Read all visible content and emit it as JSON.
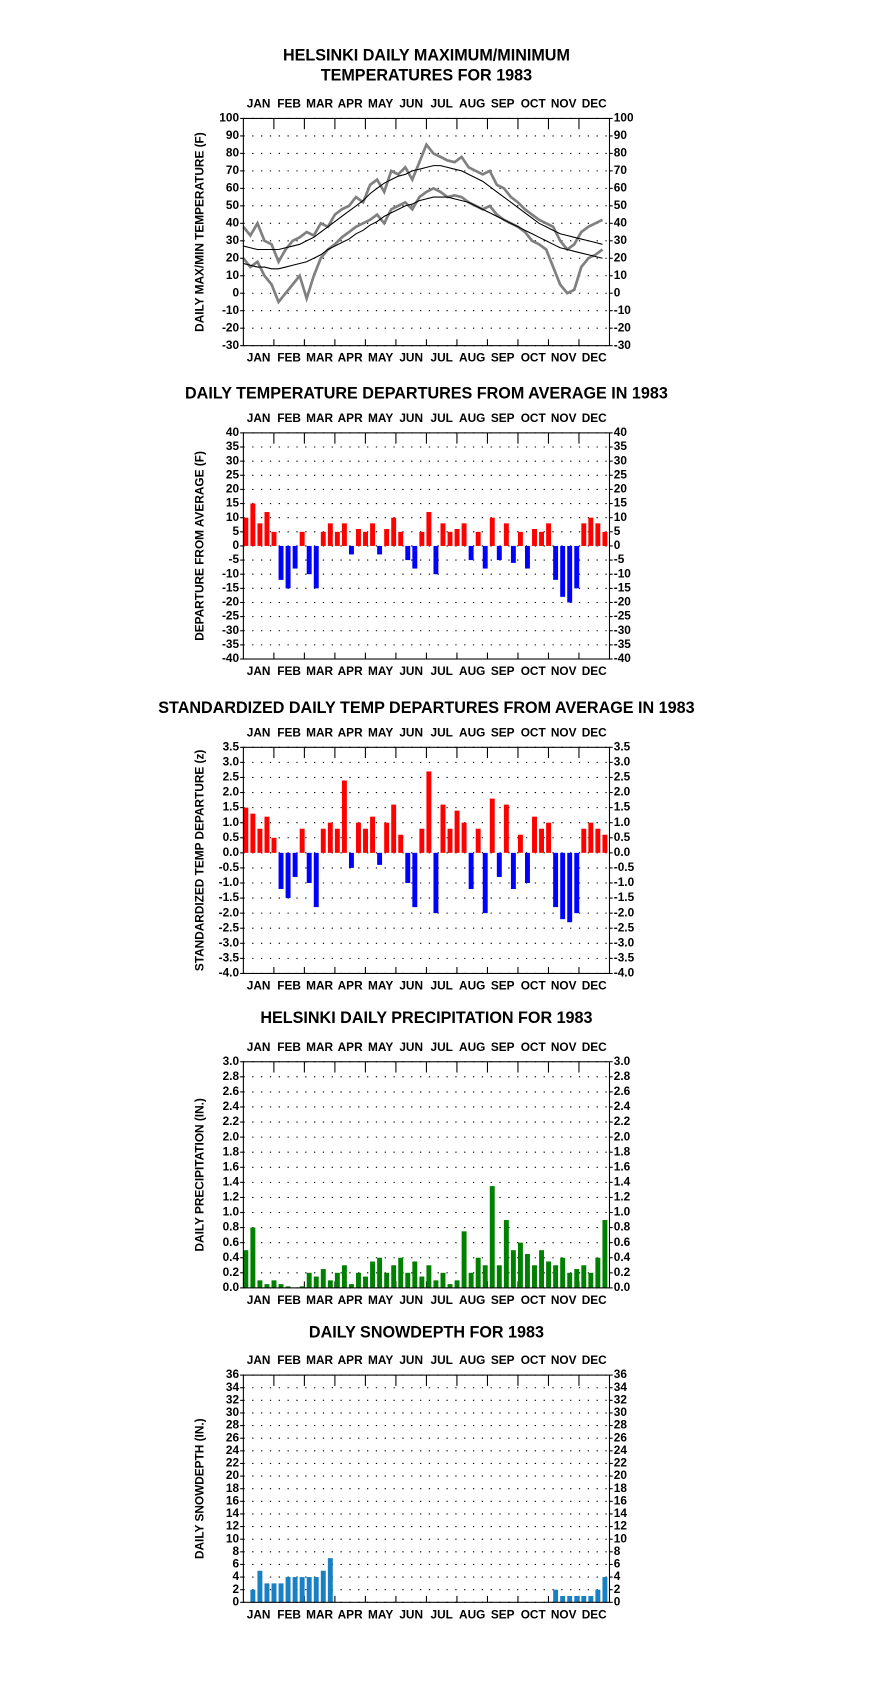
{
  "chart_data": [
    {
      "type": "line",
      "title": [
        "HELSINKI DAILY MAXIMUM/MINIMUM",
        "TEMPERATURES FOR 1983"
      ],
      "y_label": "DAILY MAX/MIN TEMPERATURE (F)",
      "months": [
        "JAN",
        "FEB",
        "MAR",
        "APR",
        "MAY",
        "JUN",
        "JUL",
        "AUG",
        "SEP",
        "OCT",
        "NOV",
        "DEC"
      ],
      "x": [
        1,
        8,
        15,
        22,
        29,
        36,
        43,
        50,
        57,
        64,
        71,
        78,
        85,
        92,
        99,
        106,
        113,
        120,
        127,
        134,
        141,
        148,
        155,
        162,
        169,
        176,
        183,
        190,
        197,
        204,
        211,
        218,
        225,
        232,
        239,
        246,
        253,
        260,
        267,
        274,
        281,
        288,
        295,
        302,
        309,
        316,
        323,
        330,
        337,
        344,
        351,
        358
      ],
      "xlim": [
        1,
        365
      ],
      "ylim": [
        -30,
        100
      ],
      "yticks": [
        -30,
        -20,
        -10,
        0,
        10,
        20,
        30,
        40,
        50,
        60,
        70,
        80,
        90,
        100
      ],
      "grid": true,
      "series": [
        {
          "name": "Observed maximum",
          "color": "#808080",
          "values": [
            38,
            33,
            40,
            30,
            28,
            18,
            25,
            30,
            32,
            35,
            33,
            40,
            38,
            45,
            48,
            50,
            55,
            52,
            62,
            65,
            58,
            70,
            68,
            72,
            65,
            75,
            85,
            80,
            78,
            76,
            75,
            78,
            72,
            70,
            68,
            70,
            62,
            60,
            55,
            52,
            48,
            45,
            42,
            40,
            38,
            30,
            25,
            28,
            35,
            38,
            40,
            42
          ]
        },
        {
          "name": "Observed minimum",
          "color": "#808080",
          "values": [
            20,
            15,
            18,
            10,
            5,
            -5,
            0,
            5,
            10,
            -3,
            10,
            20,
            25,
            28,
            32,
            35,
            38,
            40,
            42,
            45,
            40,
            48,
            50,
            52,
            48,
            55,
            58,
            60,
            58,
            55,
            56,
            55,
            52,
            50,
            48,
            50,
            45,
            42,
            40,
            38,
            35,
            30,
            28,
            25,
            15,
            5,
            0,
            2,
            15,
            20,
            22,
            25
          ]
        },
        {
          "name": "Normal maximum",
          "color": "#000000",
          "values": [
            27,
            26,
            25,
            25,
            25,
            25,
            26,
            27,
            28,
            30,
            32,
            35,
            38,
            41,
            44,
            47,
            50,
            53,
            57,
            60,
            63,
            65,
            67,
            68,
            70,
            71,
            72,
            73,
            73,
            72,
            71,
            70,
            68,
            66,
            64,
            61,
            58,
            55,
            52,
            49,
            46,
            43,
            40,
            38,
            36,
            34,
            33,
            32,
            31,
            30,
            29,
            28
          ]
        },
        {
          "name": "Normal minimum",
          "color": "#000000",
          "values": [
            17,
            16,
            15,
            15,
            14,
            14,
            15,
            16,
            17,
            18,
            20,
            22,
            25,
            27,
            29,
            31,
            34,
            36,
            39,
            41,
            44,
            46,
            48,
            50,
            51,
            53,
            54,
            55,
            55,
            55,
            54,
            53,
            52,
            50,
            48,
            46,
            44,
            42,
            40,
            38,
            36,
            34,
            32,
            30,
            28,
            26,
            25,
            24,
            23,
            22,
            21,
            20
          ]
        }
      ]
    },
    {
      "type": "bar",
      "title": [
        "DAILY TEMPERATURE DEPARTURES FROM AVERAGE IN 1983"
      ],
      "y_label": "DEPARTURE FROM AVERAGE (F)",
      "months": [
        "JAN",
        "FEB",
        "MAR",
        "APR",
        "MAY",
        "JUN",
        "JUL",
        "AUG",
        "SEP",
        "OCT",
        "NOV",
        "DEC"
      ],
      "x": [
        1,
        8,
        15,
        22,
        29,
        36,
        43,
        50,
        57,
        64,
        71,
        78,
        85,
        92,
        99,
        106,
        113,
        120,
        127,
        134,
        141,
        148,
        155,
        162,
        169,
        176,
        183,
        190,
        197,
        204,
        211,
        218,
        225,
        232,
        239,
        246,
        253,
        260,
        267,
        274,
        281,
        288,
        295,
        302,
        309,
        316,
        323,
        330,
        337,
        344,
        351,
        358
      ],
      "xlim": [
        1,
        365
      ],
      "ylim": [
        -40,
        40
      ],
      "yticks": [
        -40,
        -35,
        -30,
        -25,
        -20,
        -15,
        -10,
        -5,
        0,
        5,
        10,
        15,
        20,
        25,
        30,
        35,
        40
      ],
      "grid": true,
      "positive_color": "#ff0000",
      "negative_color": "#0000ff",
      "values": [
        10,
        15,
        8,
        12,
        5,
        -12,
        -15,
        -8,
        5,
        -10,
        -15,
        5,
        8,
        5,
        8,
        -3,
        6,
        5,
        8,
        -3,
        6,
        10,
        5,
        -5,
        -8,
        5,
        12,
        -10,
        8,
        5,
        6,
        8,
        -5,
        5,
        -8,
        10,
        -5,
        8,
        -6,
        5,
        -8,
        6,
        5,
        8,
        -12,
        -18,
        -20,
        -15,
        8,
        10,
        8,
        5
      ]
    },
    {
      "type": "bar",
      "title": [
        "STANDARDIZED DAILY TEMP DEPARTURES FROM AVERAGE IN 1983"
      ],
      "y_label": "STANDARDIZED TEMP DEPARTURE (z)",
      "months": [
        "JAN",
        "FEB",
        "MAR",
        "APR",
        "MAY",
        "JUN",
        "JUL",
        "AUG",
        "SEP",
        "OCT",
        "NOV",
        "DEC"
      ],
      "x": [
        1,
        8,
        15,
        22,
        29,
        36,
        43,
        50,
        57,
        64,
        71,
        78,
        85,
        92,
        99,
        106,
        113,
        120,
        127,
        134,
        141,
        148,
        155,
        162,
        169,
        176,
        183,
        190,
        197,
        204,
        211,
        218,
        225,
        232,
        239,
        246,
        253,
        260,
        267,
        274,
        281,
        288,
        295,
        302,
        309,
        316,
        323,
        330,
        337,
        344,
        351,
        358
      ],
      "xlim": [
        1,
        365
      ],
      "ylim": [
        -4,
        3.5
      ],
      "yticks": [
        {
          "value": -4,
          "label": "-4.0"
        },
        -3.5,
        {
          "value": -3,
          "label": "-3.0"
        },
        -2.5,
        {
          "value": -2,
          "label": "-2.0"
        },
        -1.5,
        {
          "value": -1,
          "label": "-1.0"
        },
        -0.5,
        {
          "value": 0,
          "label": "0.0"
        },
        0.5,
        {
          "value": 1,
          "label": "1.0"
        },
        1.5,
        {
          "value": 2,
          "label": "2.0"
        },
        2.5,
        {
          "value": 3,
          "label": "3.0"
        },
        3.5
      ],
      "grid": true,
      "positive_color": "#ff0000",
      "negative_color": "#0000ff",
      "values": [
        1.5,
        1.3,
        0.8,
        1.2,
        0.5,
        -1.2,
        -1.5,
        -0.8,
        0.8,
        -1.0,
        -1.8,
        0.8,
        1.0,
        0.8,
        2.4,
        -0.5,
        1.0,
        0.8,
        1.2,
        -0.4,
        1.0,
        1.6,
        0.6,
        -1.0,
        -1.8,
        0.8,
        2.7,
        -2.0,
        1.6,
        0.8,
        1.4,
        1.0,
        -1.2,
        0.8,
        -2.0,
        1.8,
        -0.8,
        1.6,
        -1.2,
        0.6,
        -1.0,
        1.2,
        0.8,
        1.0,
        -1.8,
        -2.2,
        -2.3,
        -2.0,
        0.8,
        1.0,
        0.8,
        0.6
      ]
    },
    {
      "type": "bar",
      "title": [
        "HELSINKI DAILY PRECIPITATION FOR 1983"
      ],
      "y_label": "DAILY PRECIPITATION (IN.)",
      "months": [
        "JAN",
        "FEB",
        "MAR",
        "APR",
        "MAY",
        "JUN",
        "JUL",
        "AUG",
        "SEP",
        "OCT",
        "NOV",
        "DEC"
      ],
      "x": [
        1,
        8,
        15,
        22,
        29,
        36,
        43,
        50,
        57,
        64,
        71,
        78,
        85,
        92,
        99,
        106,
        113,
        120,
        127,
        134,
        141,
        148,
        155,
        162,
        169,
        176,
        183,
        190,
        197,
        204,
        211,
        218,
        225,
        232,
        239,
        246,
        253,
        260,
        267,
        274,
        281,
        288,
        295,
        302,
        309,
        316,
        323,
        330,
        337,
        344,
        351,
        358
      ],
      "xlim": [
        1,
        365
      ],
      "ylim": [
        0,
        3
      ],
      "yticks": [
        {
          "value": 0,
          "label": "0.0"
        },
        0.2,
        0.4,
        0.6,
        0.8,
        {
          "value": 1,
          "label": "1.0"
        },
        1.2,
        1.4,
        1.6,
        1.8,
        {
          "value": 2,
          "label": "2.0"
        },
        2.2,
        2.4,
        2.6,
        2.8,
        {
          "value": 3,
          "label": "3.0"
        }
      ],
      "grid": true,
      "positive_color": "#008000",
      "negative_color": "#008000",
      "values": [
        0.5,
        0.8,
        0.1,
        0.05,
        0.1,
        0.05,
        0.02,
        0,
        0.02,
        0.2,
        0.15,
        0.25,
        0.1,
        0.2,
        0.3,
        0.05,
        0.2,
        0.15,
        0.35,
        0.4,
        0.2,
        0.3,
        0.4,
        0.2,
        0.35,
        0.15,
        0.3,
        0.1,
        0.2,
        0.05,
        0.1,
        0.75,
        0.2,
        0.4,
        0.3,
        1.35,
        0.3,
        0.9,
        0.5,
        0.6,
        0.45,
        0.3,
        0.5,
        0.35,
        0.3,
        0.4,
        0.2,
        0.25,
        0.3,
        0.2,
        0.4,
        0.9
      ]
    },
    {
      "type": "bar",
      "title": [
        "DAILY SNOWDEPTH FOR 1983"
      ],
      "y_label": "DAILY SNOWDEPTH (IN.)",
      "months": [
        "JAN",
        "FEB",
        "MAR",
        "APR",
        "MAY",
        "JUN",
        "JUL",
        "AUG",
        "SEP",
        "OCT",
        "NOV",
        "DEC"
      ],
      "x": [
        1,
        8,
        15,
        22,
        29,
        36,
        43,
        50,
        57,
        64,
        71,
        78,
        85,
        92,
        99,
        106,
        113,
        120,
        127,
        134,
        141,
        148,
        155,
        162,
        169,
        176,
        183,
        190,
        197,
        204,
        211,
        218,
        225,
        232,
        239,
        246,
        253,
        260,
        267,
        274,
        281,
        288,
        295,
        302,
        309,
        316,
        323,
        330,
        337,
        344,
        351,
        358
      ],
      "xlim": [
        1,
        365
      ],
      "ylim": [
        0,
        36
      ],
      "yticks": [
        0,
        2,
        4,
        6,
        8,
        10,
        12,
        14,
        16,
        18,
        20,
        22,
        24,
        26,
        28,
        30,
        32,
        34,
        36
      ],
      "grid": true,
      "positive_color": "#1a80c4",
      "negative_color": "#1a80c4",
      "values": [
        0,
        2,
        5,
        3,
        3,
        3,
        4,
        4,
        4,
        4,
        4,
        5,
        7,
        0,
        0,
        0,
        0,
        0,
        0,
        0,
        0,
        0,
        0,
        0,
        0,
        0,
        0,
        0,
        0,
        0,
        0,
        0,
        0,
        0,
        0,
        0,
        0,
        0,
        0,
        0,
        0,
        0,
        0,
        0,
        2,
        1,
        1,
        1,
        1,
        1,
        2,
        4
      ]
    }
  ]
}
